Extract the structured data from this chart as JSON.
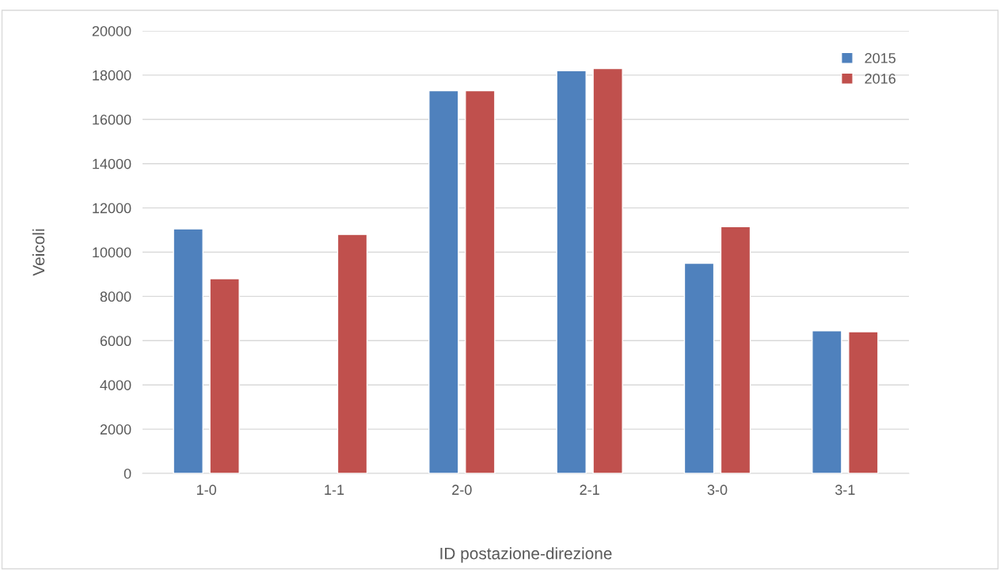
{
  "chart_data": {
    "type": "bar",
    "xlabel": "ID postazione-direzione",
    "ylabel": "Veicoli",
    "categories": [
      "1-0",
      "1-1",
      "2-0",
      "2-1",
      "3-0",
      "3-1"
    ],
    "series": [
      {
        "name": "2015",
        "color": "#4f81bd",
        "values": [
          11050,
          null,
          17300,
          18200,
          9500,
          6450
        ]
      },
      {
        "name": "2016",
        "color": "#c0504d",
        "values": [
          8800,
          10800,
          17300,
          18300,
          11150,
          6400
        ]
      }
    ],
    "ylim": [
      0,
      20000
    ],
    "yticks": [
      0,
      2000,
      4000,
      6000,
      8000,
      10000,
      12000,
      14000,
      16000,
      18000,
      20000
    ],
    "grid": "y",
    "legend": "top right"
  }
}
